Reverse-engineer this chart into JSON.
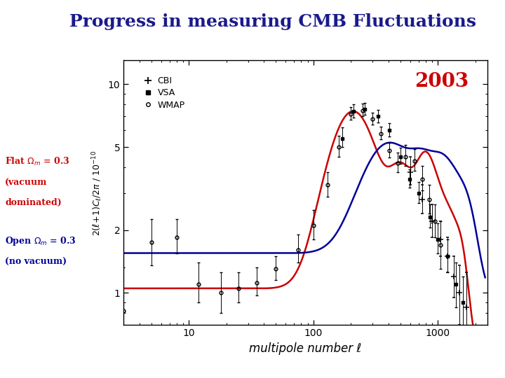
{
  "title": "Progress in measuring CMB Fluctuations",
  "title_color": "#1a1a8c",
  "title_fontsize": 18,
  "xlabel": "multipole number ℓ",
  "year_label": "2003",
  "year_color": "#cc0000",
  "flat_color": "#cc0000",
  "open_color": "#000099",
  "bg_color": "#ffffff",
  "plot_bg_color": "#ffffff",
  "xlim": [
    3,
    2500
  ],
  "ylim_log": [
    0.7,
    13
  ],
  "flat_curve_color": "#cc0000",
  "open_curve_color": "#000099",
  "wmap_ell": [
    3,
    5,
    8,
    12,
    18,
    25,
    35,
    50,
    75,
    100,
    130,
    160,
    200,
    250,
    300,
    350,
    410,
    475,
    550,
    650,
    750,
    850,
    950,
    1050
  ],
  "wmap_cl": [
    0.82,
    1.75,
    1.85,
    1.1,
    1.0,
    1.05,
    1.12,
    1.3,
    1.6,
    2.1,
    3.3,
    5.0,
    7.2,
    7.5,
    6.8,
    5.8,
    4.8,
    4.2,
    4.5,
    4.3,
    3.5,
    2.8,
    2.2,
    1.7
  ],
  "wmap_eu": [
    0.5,
    0.5,
    0.4,
    0.3,
    0.25,
    0.2,
    0.2,
    0.2,
    0.3,
    0.4,
    0.5,
    0.65,
    0.55,
    0.55,
    0.5,
    0.45,
    0.45,
    0.5,
    0.6,
    0.6,
    0.55,
    0.5,
    0.45,
    0.5
  ],
  "wmap_ed": [
    0.3,
    0.4,
    0.3,
    0.2,
    0.2,
    0.15,
    0.15,
    0.15,
    0.2,
    0.3,
    0.4,
    0.5,
    0.45,
    0.45,
    0.4,
    0.35,
    0.35,
    0.4,
    0.45,
    0.45,
    0.4,
    0.4,
    0.35,
    0.4
  ],
  "cbi_ell": [
    600,
    750,
    900,
    1050,
    1200,
    1350,
    1500,
    1700
  ],
  "cbi_cl": [
    3.8,
    2.8,
    2.2,
    1.8,
    1.5,
    1.2,
    1.0,
    0.85
  ],
  "cbi_eu": [
    0.7,
    0.5,
    0.45,
    0.4,
    0.35,
    0.3,
    0.35,
    0.4
  ],
  "cbi_ed": [
    0.5,
    0.4,
    0.35,
    0.3,
    0.25,
    0.25,
    0.3,
    0.35
  ],
  "vsa_ell": [
    170,
    210,
    260,
    330,
    410,
    500,
    590,
    700,
    870,
    1000,
    1200,
    1400,
    1600
  ],
  "vsa_cl": [
    5.5,
    7.4,
    7.6,
    7.0,
    6.0,
    4.5,
    3.5,
    3.0,
    2.3,
    1.8,
    1.5,
    1.1,
    0.9
  ],
  "vsa_eu": [
    0.7,
    0.6,
    0.55,
    0.55,
    0.5,
    0.45,
    0.4,
    0.4,
    0.35,
    0.35,
    0.3,
    0.3,
    0.3
  ],
  "vsa_ed": [
    0.5,
    0.5,
    0.45,
    0.45,
    0.4,
    0.35,
    0.3,
    0.3,
    0.25,
    0.25,
    0.25,
    0.25,
    0.25
  ]
}
